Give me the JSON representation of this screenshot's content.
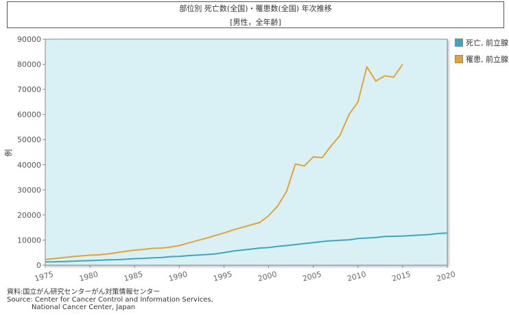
{
  "chart_data": {
    "type": "line",
    "title": "部位別 死亡数(全国)・罹患数(全国) 年次推移",
    "subtitle": "[男性，全年齢]",
    "ylabel": "例",
    "xlabel": "",
    "xlim": [
      1975,
      2020
    ],
    "ylim": [
      0,
      90000
    ],
    "x_ticks": [
      "1975",
      "1980",
      "1985",
      "1990",
      "1995",
      "2000",
      "2005",
      "2010",
      "2015",
      "2020"
    ],
    "y_ticks": [
      "0",
      "10000",
      "20000",
      "30000",
      "40000",
      "50000",
      "60000",
      "70000",
      "80000",
      "90000"
    ],
    "grid": false,
    "legend_position": "right",
    "series": [
      {
        "name": "死亡, 前立腺",
        "color": "#3aa6c1",
        "x": [
          1975,
          1976,
          1977,
          1978,
          1979,
          1980,
          1981,
          1982,
          1983,
          1984,
          1985,
          1986,
          1987,
          1988,
          1989,
          1990,
          1991,
          1992,
          1993,
          1994,
          1995,
          1996,
          1997,
          1998,
          1999,
          2000,
          2001,
          2002,
          2003,
          2004,
          2005,
          2006,
          2007,
          2008,
          2009,
          2010,
          2011,
          2012,
          2013,
          2014,
          2015,
          2016,
          2017,
          2018,
          2019,
          2020
        ],
        "values": [
          1300,
          1350,
          1450,
          1550,
          1700,
          1800,
          1950,
          2100,
          2200,
          2350,
          2600,
          2700,
          2900,
          3050,
          3400,
          3500,
          3800,
          4000,
          4200,
          4500,
          5000,
          5600,
          6000,
          6400,
          6800,
          7000,
          7500,
          7800,
          8200,
          8600,
          9000,
          9400,
          9700,
          9900,
          10100,
          10600,
          10800,
          11000,
          11400,
          11500,
          11600,
          11800,
          12000,
          12200,
          12600,
          12800
        ]
      },
      {
        "name": "罹患, 前立腺",
        "color": "#e8a130",
        "x": [
          1975,
          1976,
          1977,
          1978,
          1979,
          1980,
          1981,
          1982,
          1983,
          1984,
          1985,
          1986,
          1987,
          1988,
          1989,
          1990,
          1991,
          1992,
          1993,
          1994,
          1995,
          1996,
          1997,
          1998,
          1999,
          2000,
          2001,
          2002,
          2003,
          2004,
          2005,
          2006,
          2007,
          2008,
          2009,
          2010,
          2011,
          2012,
          2013,
          2014,
          2015
        ],
        "values": [
          2300,
          2600,
          3000,
          3400,
          3700,
          4000,
          4100,
          4500,
          5000,
          5500,
          6000,
          6300,
          6700,
          6800,
          7200,
          7800,
          8800,
          9800,
          10700,
          11800,
          12800,
          14000,
          15000,
          16000,
          17000,
          19700,
          23500,
          29300,
          40300,
          39500,
          43100,
          42800,
          47500,
          51700,
          60000,
          65000,
          79000,
          73300,
          75400,
          74900,
          80000
        ]
      }
    ]
  },
  "source": {
    "line1": "資料:国立がん研究センターがん対策情報センター",
    "line2": "Source: Center for Cancer Control and Information Services,",
    "line3": "National Cancer Center, Japan"
  }
}
